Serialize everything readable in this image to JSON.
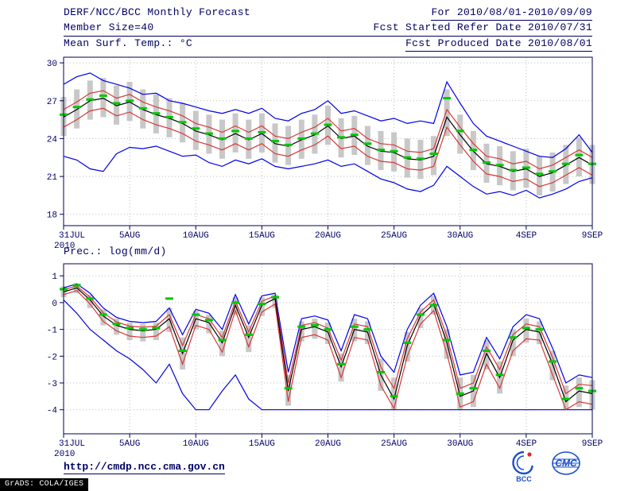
{
  "header": {
    "line1_left": "DERF/NCC/BCC Monthly Forecast",
    "line2_left": "Member Size=40",
    "line1_right": "For 2010/08/01-2010/09/09",
    "line2_right": "Fcst Started Refer Date 2010/07/31",
    "line3_right": "Fcst Produced Date 2010/08/01"
  },
  "chart_data": [
    {
      "type": "line",
      "title": "Mean Surf. Temp.: °C",
      "xlabel": "",
      "ylabel": "",
      "x_year_label": "2010",
      "x_tick_positions": [
        0,
        5,
        10,
        15,
        20,
        25,
        30,
        35,
        40
      ],
      "x_tick_labels": [
        "31JUL",
        "5AUG",
        "10AUG",
        "15AUG",
        "20AUG",
        "25AUG",
        "30AUG",
        "4SEP",
        "9SEP"
      ],
      "y_ticks": [
        30,
        27,
        24,
        21,
        18
      ],
      "ylim": [
        18,
        30
      ],
      "grid": "dotted",
      "legend_position": "none",
      "series": [
        {
          "name": "ensemble-max",
          "color": "#0000e8",
          "values": [
            28.3,
            28.9,
            29.2,
            28.6,
            28.3,
            28.0,
            27.5,
            27.6,
            27.0,
            26.8,
            26.5,
            26.2,
            26.0,
            26.3,
            26.0,
            26.4,
            25.6,
            25.4,
            26.0,
            26.3,
            27.0,
            26.0,
            26.2,
            25.8,
            25.4,
            25.6,
            25.2,
            25.4,
            25.2,
            28.5,
            26.8,
            25.2,
            24.2,
            23.8,
            23.4,
            23.0,
            22.6,
            22.5,
            23.2,
            24.3,
            22.9
          ]
        },
        {
          "name": "ensemble-min",
          "color": "#0000e8",
          "values": [
            22.6,
            22.3,
            21.6,
            21.4,
            22.8,
            23.3,
            23.2,
            23.4,
            23.0,
            22.6,
            22.7,
            22.1,
            21.8,
            22.3,
            22.0,
            22.4,
            21.8,
            21.6,
            21.8,
            22.0,
            22.3,
            21.8,
            22.0,
            21.4,
            20.8,
            20.5,
            20.0,
            19.8,
            20.3,
            21.8,
            21.0,
            20.2,
            19.6,
            19.8,
            19.5,
            19.9,
            19.3,
            19.6,
            20.0,
            20.6,
            20.9
          ]
        },
        {
          "name": "upper-quartile",
          "color": "#d83838",
          "values": [
            26.3,
            26.9,
            27.6,
            27.8,
            27.2,
            27.5,
            26.9,
            26.5,
            26.2,
            25.8,
            25.2,
            24.9,
            24.5,
            25.0,
            24.5,
            25.0,
            24.2,
            24.0,
            24.5,
            24.9,
            25.6,
            24.6,
            24.8,
            24.0,
            23.6,
            23.5,
            23.0,
            22.9,
            23.2,
            26.3,
            24.9,
            23.6,
            22.6,
            22.4,
            22.0,
            22.2,
            21.6,
            21.9,
            22.5,
            23.1,
            22.5
          ]
        },
        {
          "name": "lower-quartile",
          "color": "#d83838",
          "values": [
            24.9,
            25.5,
            26.2,
            26.4,
            25.8,
            26.1,
            25.5,
            25.1,
            24.8,
            24.4,
            23.8,
            23.5,
            23.1,
            23.6,
            23.1,
            23.6,
            22.8,
            22.6,
            23.1,
            23.5,
            24.2,
            23.2,
            23.4,
            22.6,
            22.2,
            22.1,
            21.6,
            21.5,
            21.8,
            24.9,
            23.5,
            22.2,
            21.2,
            21.0,
            20.6,
            20.8,
            20.2,
            20.5,
            21.1,
            21.7,
            21.1
          ]
        },
        {
          "name": "ensemble-mean",
          "color": "#000000",
          "values": [
            25.7,
            26.3,
            27.0,
            27.2,
            26.6,
            26.9,
            26.3,
            25.9,
            25.6,
            25.2,
            24.6,
            24.3,
            23.9,
            24.4,
            23.9,
            24.4,
            23.6,
            23.4,
            23.9,
            24.3,
            25.0,
            24.0,
            24.2,
            23.4,
            23.0,
            22.9,
            22.4,
            22.3,
            22.6,
            25.7,
            24.3,
            23.0,
            22.0,
            21.8,
            21.4,
            21.6,
            21.0,
            21.3,
            21.9,
            22.5,
            21.9
          ]
        }
      ],
      "bars": {
        "name": "ensemble-spread",
        "color": "#c8c8c8",
        "high": [
          27.3,
          27.9,
          28.6,
          28.8,
          28.2,
          28.5,
          27.9,
          27.5,
          27.2,
          26.8,
          26.2,
          25.9,
          25.5,
          26.0,
          25.5,
          26.0,
          25.2,
          25.0,
          25.5,
          25.9,
          26.6,
          25.6,
          25.8,
          25.0,
          24.6,
          24.5,
          24.0,
          23.9,
          24.2,
          27.9,
          25.9,
          24.6,
          23.6,
          23.4,
          23.0,
          23.2,
          22.6,
          22.9,
          23.5,
          24.1,
          23.5
        ],
        "low": [
          24.2,
          24.8,
          25.5,
          25.7,
          25.1,
          25.4,
          24.8,
          24.4,
          24.1,
          23.7,
          23.1,
          22.8,
          22.4,
          22.9,
          22.4,
          22.9,
          22.1,
          21.9,
          22.4,
          22.8,
          23.5,
          22.5,
          22.7,
          21.9,
          21.5,
          21.4,
          20.9,
          20.8,
          21.1,
          24.2,
          22.8,
          21.5,
          20.5,
          20.3,
          19.9,
          20.1,
          19.5,
          19.8,
          20.4,
          21.0,
          20.4
        ]
      },
      "markers": {
        "name": "median",
        "style": "horizontal-dash",
        "color": "#00c800",
        "values": [
          25.9,
          26.5,
          27.1,
          27.4,
          26.8,
          27.0,
          26.4,
          26.0,
          25.7,
          25.3,
          24.8,
          24.4,
          24.0,
          24.6,
          24.0,
          24.5,
          23.8,
          23.5,
          24.0,
          24.4,
          25.1,
          24.1,
          24.3,
          23.6,
          23.1,
          23.0,
          22.5,
          22.4,
          22.8,
          27.2,
          24.6,
          23.1,
          22.1,
          21.9,
          21.5,
          21.7,
          21.2,
          21.4,
          22.0,
          22.7,
          22.0
        ]
      }
    },
    {
      "type": "line",
      "title": "Prec.: log(mm/d)",
      "xlabel": "",
      "ylabel": "",
      "x_year_label": "2010",
      "x_tick_positions": [
        0,
        5,
        10,
        15,
        20,
        25,
        30,
        35,
        40
      ],
      "x_tick_labels": [
        "31JUL",
        "5AUG",
        "10AUG",
        "15AUG",
        "20AUG",
        "25AUG",
        "30AUG",
        "4SEP",
        "9SEP"
      ],
      "y_ticks": [
        1,
        0,
        -1,
        -2,
        -3,
        -4
      ],
      "ylim": [
        -4,
        1
      ],
      "grid": "dotted",
      "legend_position": "none",
      "series": [
        {
          "name": "ensemble-max",
          "color": "#0000e8",
          "values": [
            0.55,
            0.7,
            0.35,
            -0.2,
            -0.55,
            -0.7,
            -0.75,
            -0.7,
            -0.2,
            -1.2,
            -0.25,
            -0.4,
            -1.0,
            0.3,
            -0.8,
            0.25,
            0.35,
            -2.6,
            -0.6,
            -0.5,
            -0.65,
            -1.8,
            -0.45,
            -0.6,
            -2.0,
            -2.6,
            -1.0,
            -0.1,
            0.35,
            -0.9,
            -2.7,
            -2.6,
            -1.3,
            -2.1,
            -0.9,
            -0.45,
            -0.6,
            -1.7,
            -3.0,
            -2.7,
            -2.8
          ]
        },
        {
          "name": "ensemble-min",
          "color": "#0000e8",
          "values": [
            0.1,
            -0.4,
            -1.0,
            -1.4,
            -1.8,
            -2.1,
            -2.5,
            -3.0,
            -2.3,
            -3.4,
            -4.0,
            -4.0,
            -3.3,
            -2.7,
            -3.6,
            -4.0,
            -4.0,
            -4.0,
            -4.0,
            -4.0,
            -4.0,
            -4.0,
            -4.0,
            -4.0,
            -4.0,
            -4.0,
            -4.0,
            -4.0,
            -4.0,
            -4.0,
            -4.0,
            -4.0,
            -4.0,
            -4.0,
            -4.0,
            -4.0,
            -4.0,
            -4.0,
            -4.0,
            -4.0,
            -4.0
          ]
        },
        {
          "name": "upper-quartile",
          "color": "#d83838",
          "values": [
            0.48,
            0.62,
            0.2,
            -0.38,
            -0.72,
            -0.88,
            -0.92,
            -0.88,
            -0.45,
            -1.6,
            -0.45,
            -0.6,
            -1.3,
            0.05,
            -1.1,
            0.05,
            0.25,
            -3.0,
            -0.85,
            -0.75,
            -0.95,
            -2.15,
            -0.8,
            -0.9,
            -2.4,
            -3.2,
            -1.35,
            -0.35,
            0.1,
            -1.25,
            -3.2,
            -3.0,
            -1.65,
            -2.5,
            -1.2,
            -0.8,
            -0.9,
            -2.05,
            -3.4,
            -3.05,
            -3.1
          ]
        },
        {
          "name": "lower-quartile",
          "color": "#d83838",
          "values": [
            0.3,
            0.45,
            -0.05,
            -0.7,
            -1.05,
            -1.25,
            -1.3,
            -1.25,
            -0.9,
            -2.3,
            -0.85,
            -1.0,
            -1.85,
            -0.3,
            -1.65,
            -0.35,
            -0.05,
            -3.7,
            -1.3,
            -1.2,
            -1.4,
            -2.8,
            -1.3,
            -1.4,
            -3.1,
            -3.95,
            -2.0,
            -0.8,
            -0.3,
            -1.9,
            -3.9,
            -3.7,
            -2.3,
            -3.2,
            -1.8,
            -1.35,
            -1.4,
            -2.7,
            -4.0,
            -3.7,
            -3.8
          ]
        },
        {
          "name": "ensemble-mean",
          "color": "#000000",
          "values": [
            0.4,
            0.55,
            0.1,
            -0.5,
            -0.85,
            -1.0,
            -1.05,
            -1.0,
            -0.6,
            -1.9,
            -0.6,
            -0.75,
            -1.5,
            -0.1,
            -1.3,
            -0.1,
            0.15,
            -3.3,
            -1.0,
            -0.9,
            -1.1,
            -2.4,
            -1.0,
            -1.1,
            -2.7,
            -3.6,
            -1.6,
            -0.5,
            -0.05,
            -1.5,
            -3.5,
            -3.3,
            -1.9,
            -2.8,
            -1.4,
            -1.0,
            -1.1,
            -2.3,
            -3.7,
            -3.3,
            -3.4
          ]
        }
      ],
      "bars": {
        "name": "ensemble-spread",
        "color": "#c8c8c8",
        "high": [
          0.6,
          0.72,
          0.3,
          -0.25,
          -0.6,
          -0.75,
          -0.8,
          -0.75,
          -0.2,
          -1.3,
          -0.3,
          -0.45,
          -1.05,
          0.2,
          -0.85,
          0.2,
          0.3,
          -2.7,
          -0.7,
          -0.6,
          -0.75,
          -1.9,
          -0.6,
          -0.7,
          -2.1,
          -2.8,
          -1.1,
          -0.2,
          0.25,
          -1.0,
          -2.8,
          -2.7,
          -1.4,
          -2.2,
          -1.0,
          -0.6,
          -0.7,
          -1.8,
          -3.1,
          -2.8,
          -2.9
        ],
        "low": [
          0.2,
          0.35,
          -0.2,
          -0.85,
          -1.2,
          -1.4,
          -1.45,
          -1.4,
          -1.1,
          -2.5,
          -1.0,
          -1.15,
          -2.0,
          -0.45,
          -1.85,
          -0.5,
          -0.2,
          -3.85,
          -1.45,
          -1.35,
          -1.55,
          -2.95,
          -1.45,
          -1.55,
          -3.3,
          -4.0,
          -2.2,
          -0.95,
          -0.45,
          -2.1,
          -4.0,
          -3.9,
          -2.5,
          -3.4,
          -2.0,
          -1.5,
          -1.55,
          -2.9,
          -4.0,
          -3.9,
          -4.0
        ]
      },
      "markers": {
        "name": "median",
        "style": "horizontal-dash",
        "color": "#00c800",
        "values": [
          0.5,
          0.65,
          0.15,
          -0.45,
          -0.8,
          -0.95,
          -1.0,
          -0.95,
          0.15,
          -1.8,
          -0.45,
          -0.65,
          -1.4,
          0.0,
          -1.2,
          -0.05,
          0.2,
          -3.2,
          -0.9,
          -0.85,
          -1.0,
          -2.3,
          -0.9,
          -1.0,
          -2.6,
          -3.5,
          -1.5,
          -0.45,
          -0.1,
          -1.4,
          -3.4,
          -3.2,
          -1.8,
          -2.7,
          -1.3,
          -0.95,
          -1.0,
          -2.2,
          -3.6,
          -3.2,
          -3.3
        ]
      }
    }
  ],
  "colors": {
    "text": "#000066",
    "frame": "#000055",
    "grid": "#bbbbbb",
    "logo_blue": "#1a50c8",
    "logo_red": "#e02828"
  },
  "footer": {
    "url": "http://cmdp.ncc.cma.gov.cn",
    "stamp": "GrADS: COLA/IGES",
    "logos": [
      {
        "name": "bcc-logo",
        "label": "BCC"
      },
      {
        "name": "cmc-logo",
        "label": "CMC"
      }
    ]
  }
}
